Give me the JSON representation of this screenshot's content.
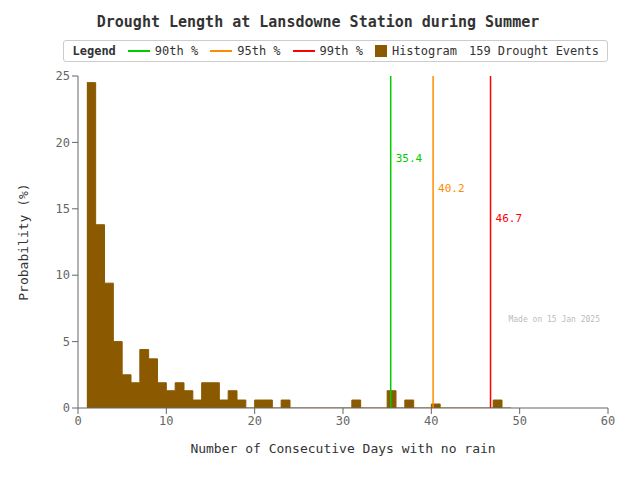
{
  "chart_data": {
    "type": "histogram",
    "title": "Drought Length at Lansdowne Station during Summer",
    "x_label": "Number of Consecutive Days with no rain",
    "y_label": "Probability (%)",
    "name": "Histogram",
    "color": "#8B5A00",
    "bins": [
      1,
      2,
      3,
      4,
      5,
      6,
      7,
      8,
      9,
      10,
      11,
      12,
      13,
      14,
      15,
      16,
      17,
      18,
      19,
      20,
      21,
      22,
      23,
      24,
      25,
      26,
      27,
      28,
      29,
      30,
      31,
      32,
      33,
      34,
      35,
      36,
      37,
      38,
      39,
      40,
      41,
      42,
      43,
      44,
      45,
      46,
      47,
      48,
      49
    ],
    "values": [
      24.5,
      13.8,
      9.4,
      5.0,
      2.5,
      1.9,
      4.4,
      3.7,
      1.9,
      1.3,
      1.9,
      1.3,
      0.6,
      1.9,
      1.9,
      0.6,
      1.3,
      0.6,
      0.0,
      0.6,
      0.6,
      0.0,
      0.6,
      0.0,
      0.0,
      0.0,
      0.0,
      0.0,
      0.0,
      0.0,
      0.6,
      0.0,
      0.0,
      0.0,
      1.3,
      0.0,
      0.6,
      0.0,
      0.0,
      0.3,
      0.0,
      0.0,
      0.0,
      0.0,
      0.0,
      0.0,
      0.6,
      0.0
    ],
    "xlim": [
      0,
      60
    ],
    "xticks": [
      0,
      10,
      20,
      30,
      40,
      50,
      60
    ],
    "ylim": [
      0,
      25
    ],
    "yticks": [
      0,
      5,
      10,
      15,
      20,
      25
    ],
    "lines": [
      {
        "name": "90th %",
        "x": 35.4,
        "color": "#00CC00"
      },
      {
        "name": "95th %",
        "x": 40.2,
        "color": "#FF8C00"
      },
      {
        "name": "99th %",
        "x": 46.7,
        "color": "#FF0000"
      }
    ],
    "annotations": [
      {
        "text": "35.4",
        "x": 35.4,
        "y": 19.5,
        "color": "#00CC00"
      },
      {
        "text": "40.2",
        "x": 40.2,
        "y": 17.2,
        "color": "#FF8C00"
      },
      {
        "text": "46.7",
        "x": 46.7,
        "y": 15.0,
        "color": "#FF0000"
      }
    ],
    "legend": "upper right",
    "legend_title": "Legend",
    "legend_note": "159 Drought Events",
    "watermark": {
      "text": "Made on 15 Jan 2025",
      "color": "#BBBBBB"
    }
  }
}
